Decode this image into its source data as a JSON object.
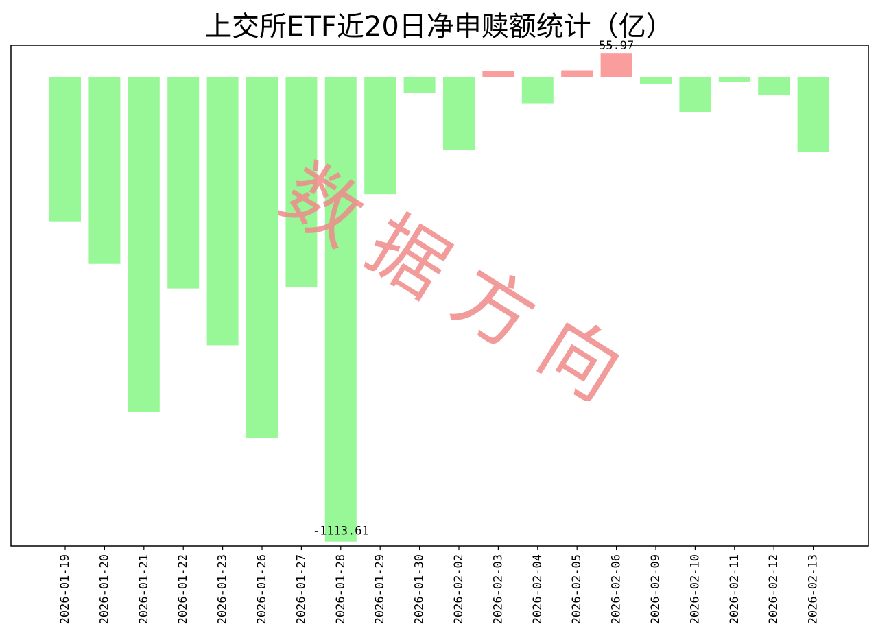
{
  "chart_data": {
    "type": "bar",
    "title": "上交所ETF近20日净申赎额统计（亿）",
    "xlabel": "",
    "ylabel": "",
    "categories": [
      "2026-01-19",
      "2026-01-20",
      "2026-01-21",
      "2026-01-22",
      "2026-01-23",
      "2026-01-26",
      "2026-01-27",
      "2026-01-28",
      "2026-01-29",
      "2026-01-30",
      "2026-02-02",
      "2026-02-03",
      "2026-02-04",
      "2026-02-05",
      "2026-02-06",
      "2026-02-09",
      "2026-02-10",
      "2026-02-11",
      "2026-02-12",
      "2026-02-13"
    ],
    "values": [
      -346,
      -448,
      -802,
      -507,
      -643,
      -866,
      -503,
      -1113.61,
      -281,
      -39,
      -174,
      15,
      -63,
      16,
      55.97,
      -16,
      -84,
      -12,
      -43,
      -180
    ],
    "ylim": [
      -1124,
      76
    ],
    "grid": false,
    "legend": "none",
    "value_labels": [
      {
        "category": "2026-02-06",
        "text": "55.97"
      },
      {
        "category": "2026-01-28",
        "text": "-1113.61"
      }
    ],
    "colors": {
      "positive": "#f99d9d",
      "negative": "#98f898"
    }
  },
  "watermark": {
    "text": "数据方向",
    "color": "#f08a8a"
  }
}
